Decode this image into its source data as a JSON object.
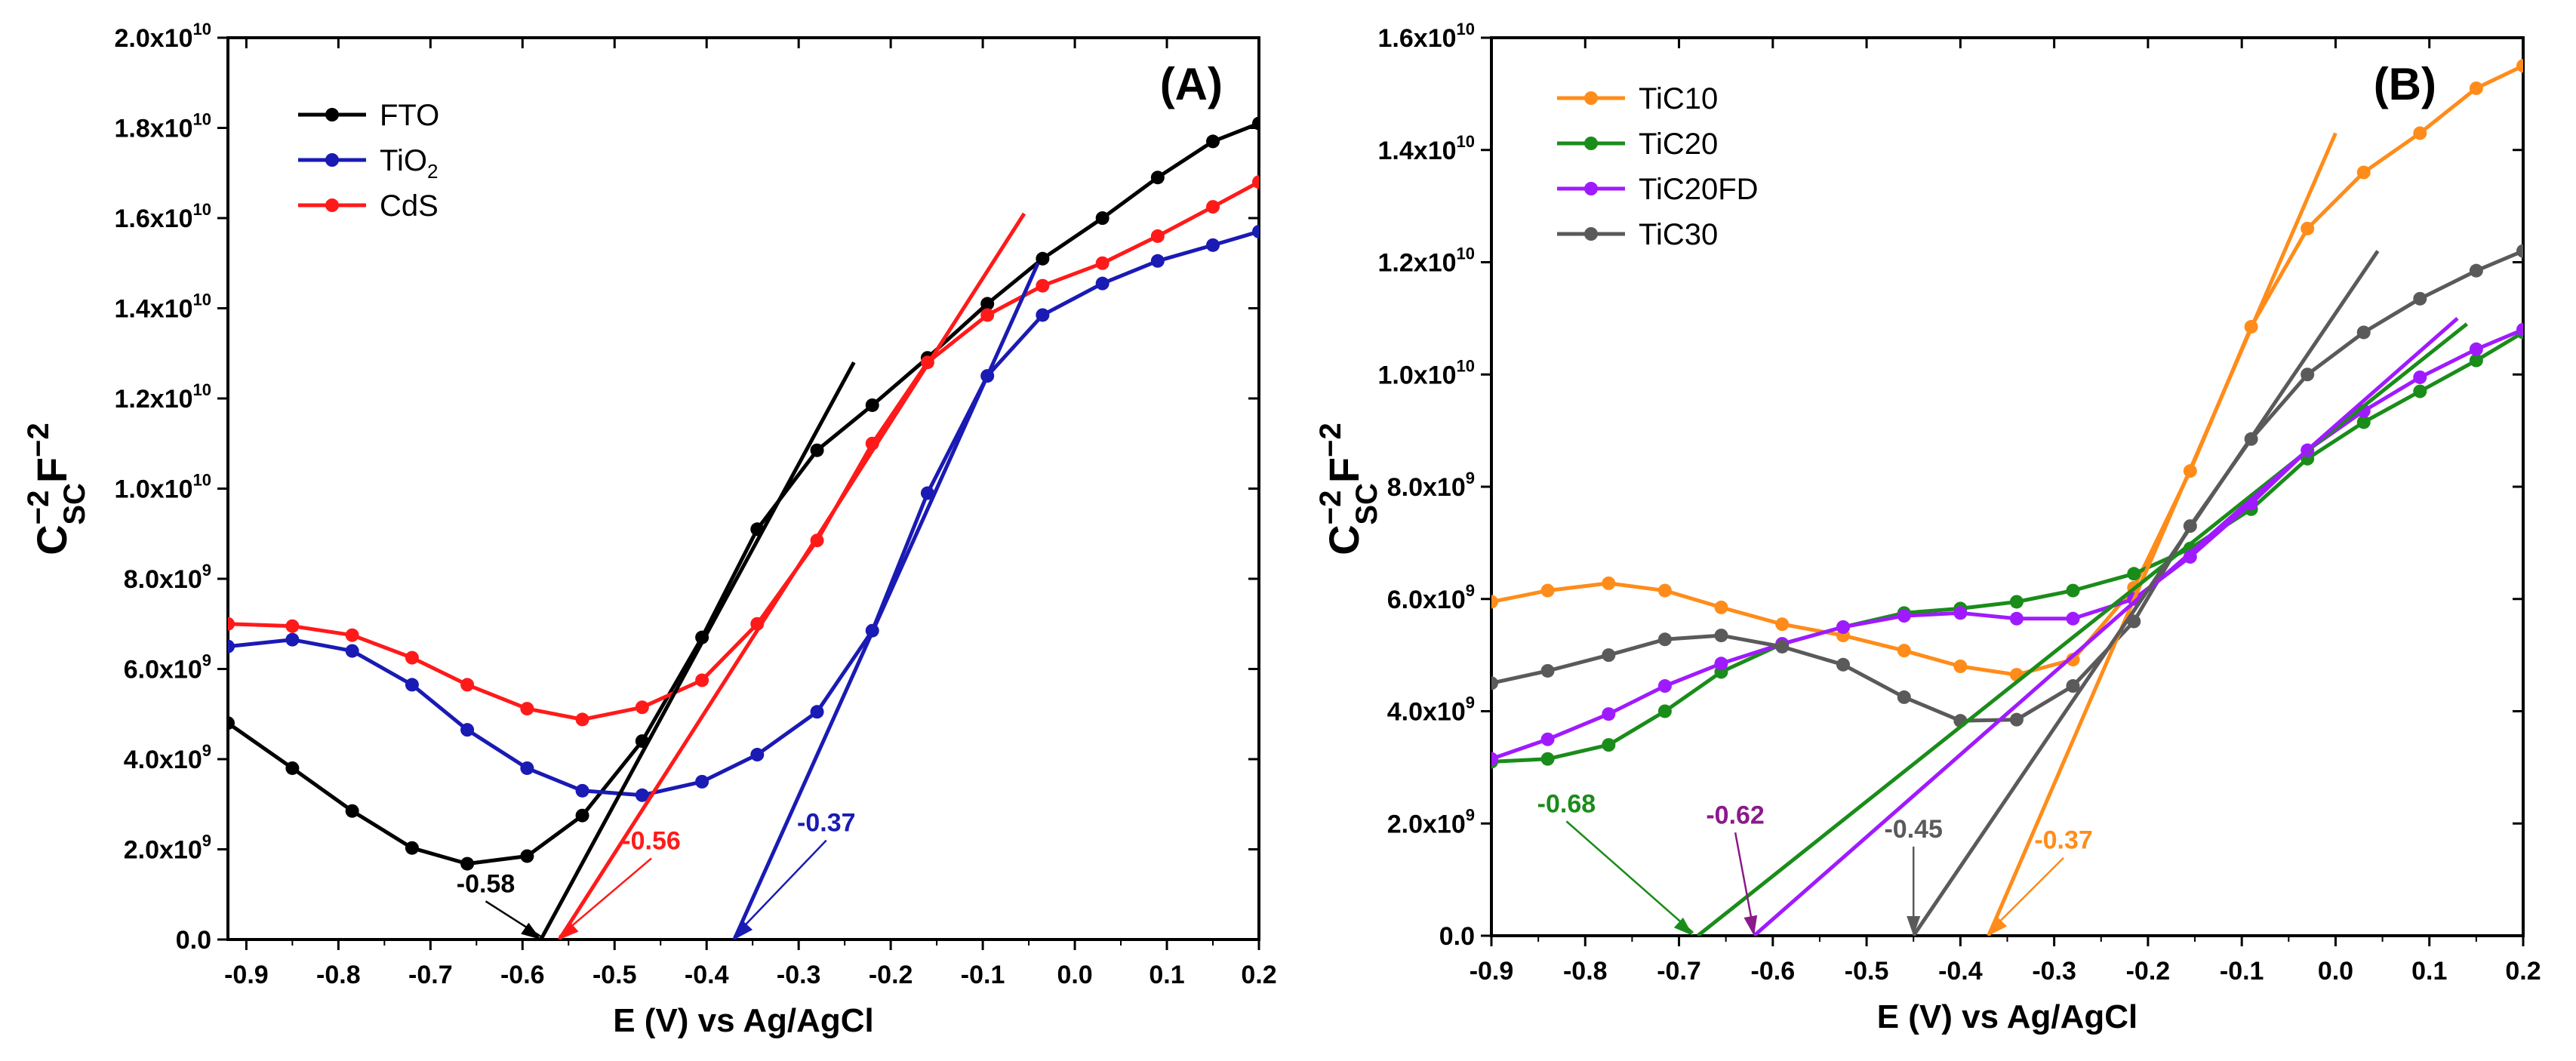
{
  "chart_data": [
    {
      "panel": "A",
      "type": "line",
      "title": "(A)",
      "xlabel": "E (V) vs Ag/AgCl",
      "ylabel": {
        "base": "C",
        "base_sub": "SC",
        "base_sup": "−2",
        "unit": "F",
        "unit_sup": "−2"
      },
      "xlim": [
        -0.92,
        0.2
      ],
      "ylim": [
        0,
        20000000000
      ],
      "x_ticks": [
        -0.9,
        -0.8,
        -0.7,
        -0.6,
        -0.5,
        -0.4,
        -0.3,
        -0.2,
        -0.1,
        0.0,
        0.1,
        0.2
      ],
      "x_tick_labels": [
        "-0.9",
        "-0.8",
        "-0.7",
        "-0.6",
        "-0.5",
        "-0.4",
        "-0.3",
        "-0.2",
        "-0.1",
        "0.0",
        "0.1",
        "0.2"
      ],
      "y_ticks": [
        0,
        2000000000,
        4000000000,
        6000000000,
        8000000000,
        10000000000,
        12000000000,
        14000000000,
        16000000000,
        18000000000,
        20000000000
      ],
      "y_tick_labels": [
        {
          "mant": "0.0",
          "exp": ""
        },
        {
          "mant": "2.0x10",
          "exp": "9"
        },
        {
          "mant": "4.0x10",
          "exp": "9"
        },
        {
          "mant": "6.0x10",
          "exp": "9"
        },
        {
          "mant": "8.0x10",
          "exp": "9"
        },
        {
          "mant": "1.0x10",
          "exp": "10"
        },
        {
          "mant": "1.2x10",
          "exp": "10"
        },
        {
          "mant": "1.4x10",
          "exp": "10"
        },
        {
          "mant": "1.6x10",
          "exp": "10"
        },
        {
          "mant": "1.8x10",
          "exp": "10"
        },
        {
          "mant": "2.0x10",
          "exp": "10"
        }
      ],
      "legend_position": "top-left",
      "series": [
        {
          "name": "FTO",
          "name_main": "FTO",
          "name_sub": "",
          "color": "#000000",
          "x": [
            -0.92,
            -0.85,
            -0.785,
            -0.72,
            -0.66,
            -0.595,
            -0.535,
            -0.47,
            -0.405,
            -0.345,
            -0.28,
            -0.22,
            -0.16,
            -0.095,
            -0.035,
            0.03,
            0.09,
            0.15,
            0.2
          ],
          "y": [
            4800000000,
            3800000000,
            2850000000,
            2030000000,
            1680000000,
            1850000000,
            2750000000,
            4400000000,
            6700000000,
            9100000000,
            10850000000,
            11850000000,
            12900000000,
            14100000000,
            15100000000,
            16000000000,
            16900000000,
            17700000000,
            18100000000
          ]
        },
        {
          "name": "TiO2",
          "name_main": "TiO",
          "name_sub": "2",
          "color": "#1a1ab4",
          "x": [
            -0.92,
            -0.85,
            -0.785,
            -0.72,
            -0.66,
            -0.595,
            -0.535,
            -0.47,
            -0.405,
            -0.345,
            -0.28,
            -0.22,
            -0.16,
            -0.095,
            -0.035,
            0.03,
            0.09,
            0.15,
            0.2
          ],
          "y": [
            6500000000,
            6650000000,
            6400000000,
            5650000000,
            4650000000,
            3800000000,
            3300000000,
            3200000000,
            3500000000,
            4100000000,
            5050000000,
            6850000000,
            9900000000,
            12500000000,
            13850000000,
            14550000000,
            15050000000,
            15400000000,
            15700000000
          ]
        },
        {
          "name": "CdS",
          "name_main": "CdS",
          "name_sub": "",
          "color": "#ff1a1a",
          "x": [
            -0.92,
            -0.85,
            -0.785,
            -0.72,
            -0.66,
            -0.595,
            -0.535,
            -0.47,
            -0.405,
            -0.345,
            -0.28,
            -0.22,
            -0.16,
            -0.095,
            -0.035,
            0.03,
            0.09,
            0.15,
            0.2
          ],
          "y": [
            7000000000,
            6950000000,
            6750000000,
            6250000000,
            5650000000,
            5120000000,
            4880000000,
            5150000000,
            5750000000,
            7000000000,
            8850000000,
            11000000000,
            12800000000,
            13850000000,
            14500000000,
            15000000000,
            15600000000,
            16250000000,
            16800000000
          ]
        }
      ],
      "fit_lines": [
        {
          "color": "#000000",
          "x": [
            -0.58,
            -0.24
          ],
          "y": [
            0,
            12800000000
          ]
        },
        {
          "color": "#ff1a1a",
          "x": [
            -0.56,
            -0.055
          ],
          "y": [
            0,
            16100000000
          ]
        },
        {
          "color": "#1a1ab4",
          "x": [
            -0.37,
            -0.04
          ],
          "y": [
            0,
            15000000000
          ]
        }
      ],
      "annotations": [
        {
          "text": "-0.58",
          "color": "#000000",
          "text_x": -0.64,
          "text_y": 1050000000,
          "arrow_x": -0.58,
          "arrow_y": 0
        },
        {
          "text": "-0.56",
          "color": "#ff1a1a",
          "text_x": -0.46,
          "text_y": 2000000000,
          "arrow_x": -0.56,
          "arrow_y": 0
        },
        {
          "text": "-0.37",
          "color": "#1a1ab4",
          "text_x": -0.27,
          "text_y": 2400000000,
          "arrow_x": -0.37,
          "arrow_y": 0
        }
      ]
    },
    {
      "panel": "B",
      "type": "line",
      "title": "(B)",
      "xlabel": "E (V) vs Ag/AgCl",
      "ylabel": {
        "base": "C",
        "base_sub": "SC",
        "base_sup": "−2",
        "unit": "F",
        "unit_sup": "−2"
      },
      "xlim": [
        -0.9,
        0.2
      ],
      "ylim": [
        0,
        16000000000
      ],
      "x_ticks": [
        -0.9,
        -0.8,
        -0.7,
        -0.6,
        -0.5,
        -0.4,
        -0.3,
        -0.2,
        -0.1,
        0.0,
        0.1,
        0.2
      ],
      "x_tick_labels": [
        "-0.9",
        "-0.8",
        "-0.7",
        "-0.6",
        "-0.5",
        "-0.4",
        "-0.3",
        "-0.2",
        "-0.1",
        "0.0",
        "0.1",
        "0.2"
      ],
      "y_ticks": [
        0,
        2000000000,
        4000000000,
        6000000000,
        8000000000,
        10000000000,
        12000000000,
        14000000000,
        16000000000
      ],
      "y_tick_labels": [
        {
          "mant": "0.0",
          "exp": ""
        },
        {
          "mant": "2.0x10",
          "exp": "9"
        },
        {
          "mant": "4.0x10",
          "exp": "9"
        },
        {
          "mant": "6.0x10",
          "exp": "9"
        },
        {
          "mant": "8.0x10",
          "exp": "9"
        },
        {
          "mant": "1.0x10",
          "exp": "10"
        },
        {
          "mant": "1.2x10",
          "exp": "10"
        },
        {
          "mant": "1.4x10",
          "exp": "10"
        },
        {
          "mant": "1.6x10",
          "exp": "10"
        }
      ],
      "legend_position": "top-left",
      "series": [
        {
          "name": "TiC10",
          "name_main": "TiC10",
          "name_sub": "",
          "color": "#ff8c1a",
          "x": [
            -0.9,
            -0.84,
            -0.775,
            -0.715,
            -0.655,
            -0.59,
            -0.525,
            -0.46,
            -0.4,
            -0.34,
            -0.28,
            -0.215,
            -0.155,
            -0.09,
            -0.03,
            0.03,
            0.09,
            0.15,
            0.2
          ],
          "y": [
            5950000000,
            6150000000,
            6280000000,
            6150000000,
            5850000000,
            5550000000,
            5350000000,
            5080000000,
            4800000000,
            4650000000,
            4920000000,
            6200000000,
            8280000000,
            10850000000,
            12600000000,
            13600000000,
            14300000000,
            15100000000,
            15500000000
          ]
        },
        {
          "name": "TiC20",
          "name_main": "TiC20",
          "name_sub": "",
          "color": "#1a8c1a",
          "x": [
            -0.9,
            -0.84,
            -0.775,
            -0.715,
            -0.655,
            -0.59,
            -0.525,
            -0.46,
            -0.4,
            -0.34,
            -0.28,
            -0.215,
            -0.155,
            -0.09,
            -0.03,
            0.03,
            0.09,
            0.15,
            0.2
          ],
          "y": [
            3100000000,
            3150000000,
            3400000000,
            4000000000,
            4700000000,
            5200000000,
            5500000000,
            5750000000,
            5830000000,
            5950000000,
            6150000000,
            6450000000,
            6900000000,
            7600000000,
            8500000000,
            9150000000,
            9700000000,
            10250000000,
            10750000000
          ]
        },
        {
          "name": "TiC20FD",
          "name_main": "TiC20FD",
          "name_sub": "",
          "color": "#a01aff",
          "x": [
            -0.9,
            -0.84,
            -0.775,
            -0.715,
            -0.655,
            -0.59,
            -0.525,
            -0.46,
            -0.4,
            -0.34,
            -0.28,
            -0.215,
            -0.155,
            -0.09,
            -0.03,
            0.03,
            0.09,
            0.15,
            0.2
          ],
          "y": [
            3150000000,
            3500000000,
            3950000000,
            4450000000,
            4850000000,
            5200000000,
            5500000000,
            5700000000,
            5750000000,
            5650000000,
            5650000000,
            6000000000,
            6750000000,
            7700000000,
            8650000000,
            9350000000,
            9950000000,
            10450000000,
            10800000000
          ]
        },
        {
          "name": "TiC30",
          "name_main": "TiC30",
          "name_sub": "",
          "color": "#5a5a5a",
          "x": [
            -0.9,
            -0.84,
            -0.775,
            -0.715,
            -0.655,
            -0.59,
            -0.525,
            -0.46,
            -0.4,
            -0.34,
            -0.28,
            -0.215,
            -0.155,
            -0.09,
            -0.03,
            0.03,
            0.09,
            0.15,
            0.2
          ],
          "y": [
            4500000000,
            4720000000,
            5000000000,
            5280000000,
            5350000000,
            5150000000,
            4830000000,
            4250000000,
            3830000000,
            3850000000,
            4450000000,
            5600000000,
            7300000000,
            8850000000,
            10000000000,
            10750000000,
            11350000000,
            11850000000,
            12200000000
          ]
        }
      ],
      "fit_lines": [
        {
          "color": "#ff8c1a",
          "x": [
            -0.37,
            0.0
          ],
          "y": [
            0,
            14300000000
          ]
        },
        {
          "color": "#1a8c1a",
          "x": [
            -0.68,
            0.14
          ],
          "y": [
            0,
            10900000000
          ]
        },
        {
          "color": "#a01aff",
          "x": [
            -0.62,
            0.13
          ],
          "y": [
            0,
            11000000000
          ]
        },
        {
          "color": "#5a5a5a",
          "x": [
            -0.45,
            0.045
          ],
          "y": [
            0,
            12200000000
          ]
        }
      ],
      "annotations": [
        {
          "text": "-0.68",
          "color": "#1a8c1a",
          "text_x": -0.82,
          "text_y": 2200000000,
          "arrow_x": -0.685,
          "arrow_y": 0
        },
        {
          "text": "-0.62",
          "color": "#8b1a8b",
          "text_x": -0.64,
          "text_y": 2000000000,
          "arrow_x": -0.62,
          "arrow_y": 0
        },
        {
          "text": "-0.45",
          "color": "#5a5a5a",
          "text_x": -0.45,
          "text_y": 1750000000,
          "arrow_x": -0.45,
          "arrow_y": 0
        },
        {
          "text": "-0.37",
          "color": "#ff8c1a",
          "text_x": -0.29,
          "text_y": 1550000000,
          "arrow_x": -0.37,
          "arrow_y": 0
        }
      ]
    }
  ]
}
